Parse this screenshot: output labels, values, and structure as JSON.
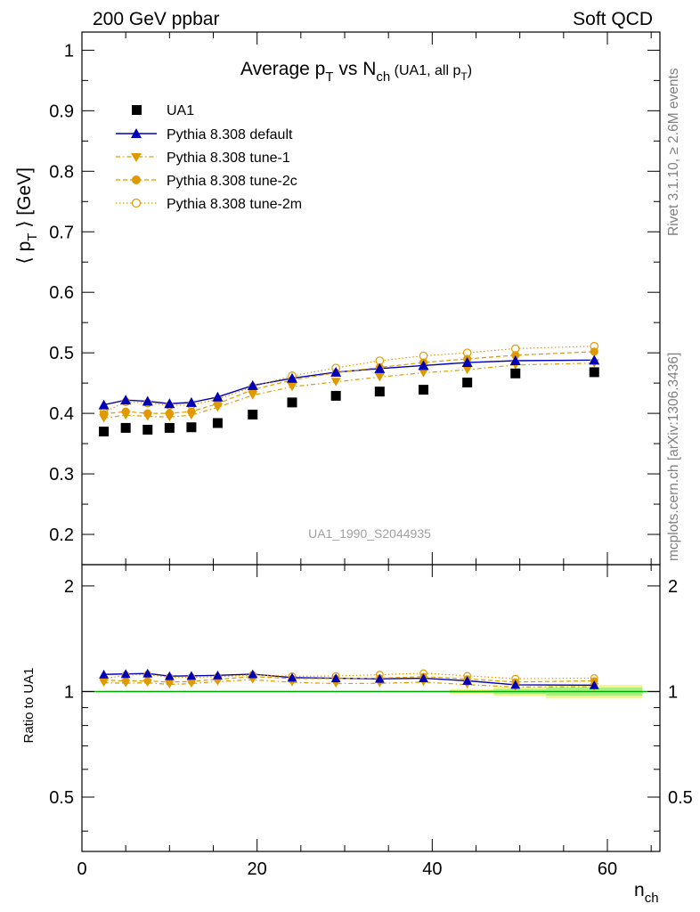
{
  "header": {
    "left": "200 GeV ppbar",
    "right": "Soft QCD"
  },
  "side": {
    "rivet": "Rivet 3.1.10, ≥ 2.6M events",
    "mcplots": "mcplots.cern.ch [arXiv:1306.3436]"
  },
  "chart_data": {
    "type": "line",
    "title": {
      "main": "Average p",
      "main_sub": "T",
      "mid": " vs N",
      "mid_sub": "ch",
      "small": " (UA1, all p",
      "small_sub": "T",
      "small_end": ")"
    },
    "watermark": "UA1_1990_S2044935",
    "ylabel": {
      "pre": "⟨ p",
      "sub": "T",
      "post": " ⟩ [GeV]"
    },
    "xlabel": {
      "main": "n",
      "sub": "ch"
    },
    "ratio_ylabel": "Ratio to UA1",
    "xlim": [
      0,
      66
    ],
    "ylim": [
      0.15,
      1.03
    ],
    "ratio_ylim": [
      0.35,
      2.3
    ],
    "x_ticks": [
      "0",
      "20",
      "40",
      "60"
    ],
    "y_ticks": [
      "0.2",
      "0.3",
      "0.4",
      "0.5",
      "0.6",
      "0.7",
      "0.8",
      "0.9",
      "1"
    ],
    "ratio_ticks": [
      "0.5",
      "1",
      "2"
    ],
    "x": [
      2.5,
      5,
      7.5,
      10,
      12.5,
      15.5,
      19.5,
      24,
      29,
      34,
      39,
      44,
      49.5,
      58.5
    ],
    "series": [
      {
        "name": "UA1",
        "values": [
          0.37,
          0.376,
          0.373,
          0.376,
          0.377,
          0.384,
          0.398,
          0.418,
          0.429,
          0.436,
          0.439,
          0.451,
          0.466,
          0.468
        ]
      },
      {
        "name": "Pythia 8.308 default",
        "values": [
          0.414,
          0.422,
          0.42,
          0.416,
          0.418,
          0.427,
          0.446,
          0.458,
          0.468,
          0.474,
          0.479,
          0.484,
          0.487,
          0.488
        ]
      },
      {
        "name": "Pythia 8.308 tune-1",
        "values": [
          0.392,
          0.397,
          0.395,
          0.394,
          0.397,
          0.41,
          0.43,
          0.444,
          0.452,
          0.46,
          0.467,
          0.472,
          0.48,
          0.483
        ]
      },
      {
        "name": "Pythia 8.308 tune-2c",
        "values": [
          0.399,
          0.403,
          0.4,
          0.4,
          0.403,
          0.416,
          0.439,
          0.455,
          0.467,
          0.476,
          0.484,
          0.49,
          0.496,
          0.502
        ]
      },
      {
        "name": "Pythia 8.308 tune-2m",
        "values": [
          0.402,
          0.419,
          0.417,
          0.413,
          0.414,
          0.423,
          0.444,
          0.462,
          0.475,
          0.487,
          0.495,
          0.5,
          0.507,
          0.511
        ]
      }
    ],
    "ratio_band_x": [
      [
        2.5,
        42.0
      ],
      [
        42.0,
        47.0
      ],
      [
        47.0,
        53.0
      ],
      [
        53.0,
        64.0
      ]
    ],
    "ratio_band_green": [
      0.003,
      0.008,
      0.016,
      0.026
    ],
    "ratio_band_yellow": [
      0.006,
      0.016,
      0.03,
      0.045
    ],
    "colors": {
      "data": "#000000",
      "default": "#0000b8",
      "tune": "#e09a00",
      "band_green": "#a8ef80",
      "band_yellow": "#f4f490",
      "unity": "#00aa00",
      "watermark": "#a0a0a0",
      "side_text": "#808080"
    }
  }
}
